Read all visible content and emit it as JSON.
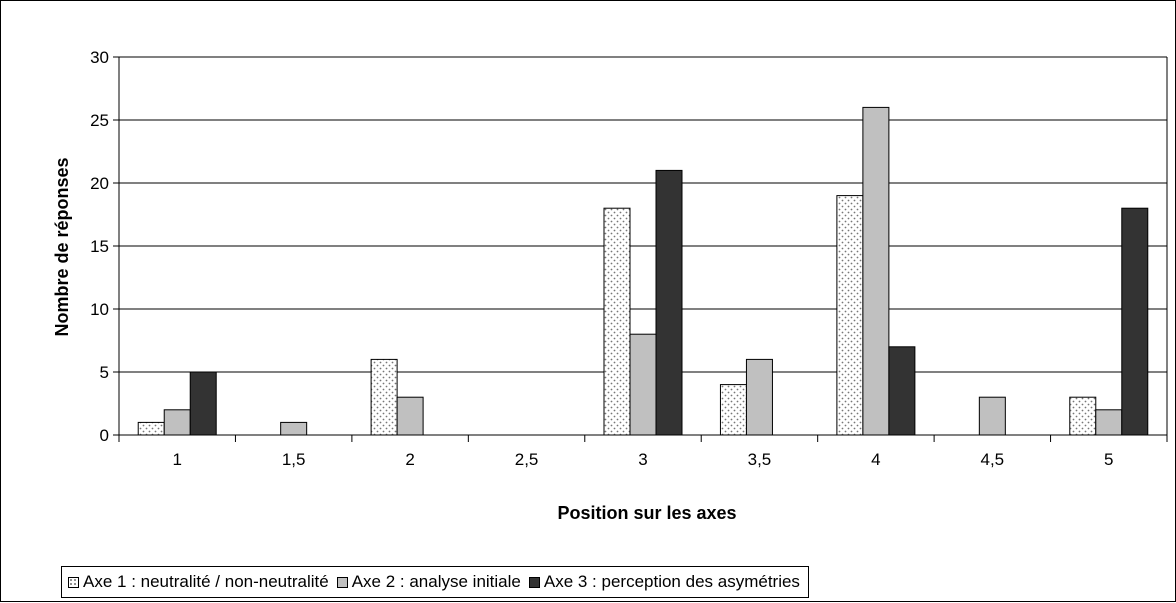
{
  "chart_data": {
    "type": "bar",
    "categories": [
      "1",
      "1,5",
      "2",
      "2,5",
      "3",
      "3,5",
      "4",
      "4,5",
      "5"
    ],
    "series": [
      {
        "name": "Axe 1 : neutralité / non-neutralité",
        "values": [
          1,
          0,
          6,
          0,
          18,
          4,
          19,
          0,
          3
        ],
        "fill": "#ffffff",
        "pattern": "dots"
      },
      {
        "name": "Axe 2 : analyse initiale",
        "values": [
          2,
          1,
          3,
          0,
          8,
          6,
          26,
          3,
          2
        ],
        "fill": "#c0c0c0"
      },
      {
        "name": "Axe 3 : perception des asymétries",
        "values": [
          5,
          0,
          0,
          0,
          21,
          0,
          7,
          0,
          18
        ],
        "fill": "#333333"
      }
    ],
    "xlabel": "Position sur les axes",
    "ylabel": "Nombre de réponses",
    "ylim": [
      0,
      30
    ],
    "yticks": [
      0,
      5,
      10,
      15,
      20,
      25,
      30
    ],
    "grid": true,
    "legend_position": "bottom"
  }
}
